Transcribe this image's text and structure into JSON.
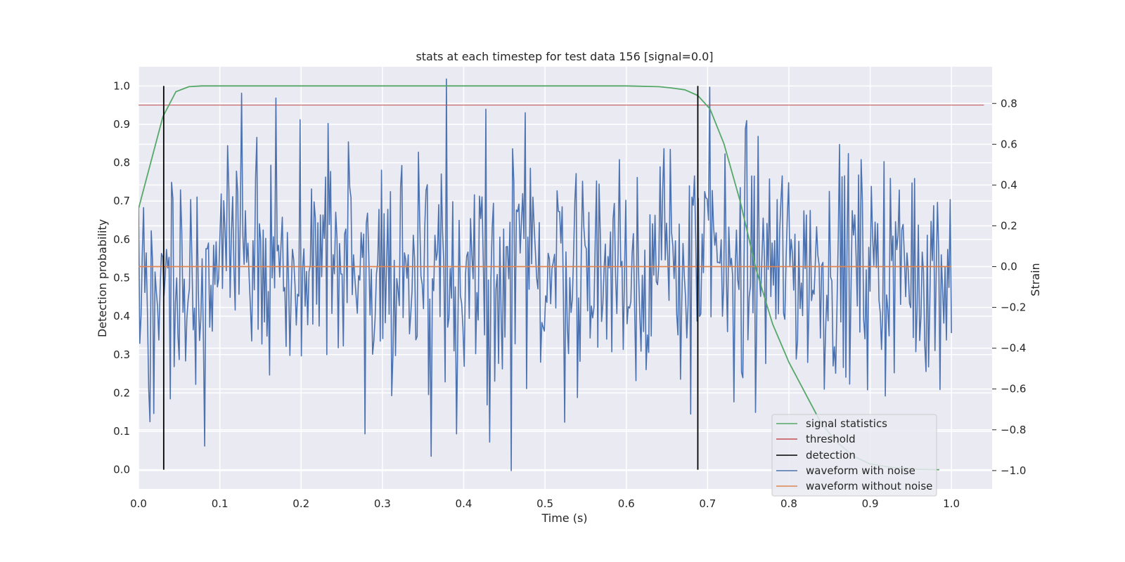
{
  "chart_data": {
    "type": "line",
    "title": "stats at each timestep for test data 156 [signal=0.0]",
    "xlabel": "Time (s)",
    "ylabel_left": "Detection probability",
    "ylabel_right": "Strain",
    "xlim": [
      0.0,
      1.05
    ],
    "ylim_left": [
      -0.05,
      1.05
    ],
    "ylim_right": [
      -1.09,
      0.98
    ],
    "x_ticks": [
      0.0,
      0.1,
      0.2,
      0.3,
      0.4,
      0.5,
      0.6,
      0.7,
      0.8,
      0.9,
      1.0
    ],
    "x_tick_labels": [
      "0.0",
      "0.1",
      "0.2",
      "0.3",
      "0.4",
      "0.5",
      "0.6",
      "0.7",
      "0.8",
      "0.9",
      "1.0"
    ],
    "y_left_ticks": [
      0.0,
      0.1,
      0.2,
      0.3,
      0.4,
      0.5,
      0.6,
      0.7,
      0.8,
      0.9,
      1.0
    ],
    "y_left_tick_labels": [
      "0.0",
      "0.1",
      "0.2",
      "0.3",
      "0.4",
      "0.5",
      "0.6",
      "0.7",
      "0.8",
      "0.9",
      "1.0"
    ],
    "y_right_ticks": [
      -1.0,
      -0.8,
      -0.6,
      -0.4,
      -0.2,
      0.0,
      0.2,
      0.4,
      0.6,
      0.8
    ],
    "y_right_tick_labels": [
      "−1.0",
      "−0.8",
      "−0.6",
      "−0.4",
      "−0.2",
      "0.0",
      "0.2",
      "0.4",
      "0.6",
      "0.8"
    ],
    "grid": true,
    "legend_position": "bottom-right",
    "series": [
      {
        "name": "signal statistics",
        "axis": "left",
        "color": "#55a868",
        "x": [
          0.0,
          0.015,
          0.03,
          0.046,
          0.062,
          0.078,
          0.1,
          0.2,
          0.3,
          0.4,
          0.5,
          0.6,
          0.64,
          0.655,
          0.672,
          0.688,
          0.703,
          0.72,
          0.74,
          0.76,
          0.78,
          0.8,
          0.82,
          0.84,
          0.86,
          0.88,
          0.9,
          0.93,
          0.96,
          0.985
        ],
        "values": [
          0.68,
          0.8,
          0.92,
          0.985,
          0.998,
          1.0,
          1.0,
          1.0,
          1.0,
          1.0,
          1.0,
          1.0,
          0.998,
          0.995,
          0.99,
          0.975,
          0.94,
          0.85,
          0.7,
          0.52,
          0.38,
          0.28,
          0.2,
          0.12,
          0.07,
          0.035,
          0.015,
          0.005,
          0.001,
          0.0
        ]
      },
      {
        "name": "threshold",
        "axis": "left",
        "color": "#c44e52",
        "x": [
          0.0,
          1.04
        ],
        "values": [
          0.95,
          0.95
        ]
      },
      {
        "name": "detection",
        "axis": "left",
        "color": "#000000",
        "segments": [
          [
            0.031,
            0.0,
            0.031,
            1.0
          ],
          [
            0.688,
            0.0,
            0.688,
            1.0
          ]
        ]
      },
      {
        "name": "waveform with noise",
        "axis": "right",
        "color": "#4c72b0",
        "x_start": 0.0,
        "x_end": 1.0,
        "points": 640,
        "seed": 156,
        "approx_std": 0.28,
        "pinned_values": [
          [
            0.379,
            0.92
          ],
          [
            0.702,
            0.88
          ],
          [
            0.458,
            -1.0
          ],
          [
            0.36,
            -0.93
          ],
          [
            0.392,
            -0.82
          ],
          [
            0.127,
            0.85
          ],
          [
            0.278,
            -0.82
          ],
          [
            0.018,
            -0.72
          ]
        ]
      },
      {
        "name": "waveform without noise",
        "axis": "right",
        "color": "#dd8452",
        "x": [
          0.0,
          1.0
        ],
        "values": [
          0.0,
          0.0
        ]
      }
    ]
  }
}
